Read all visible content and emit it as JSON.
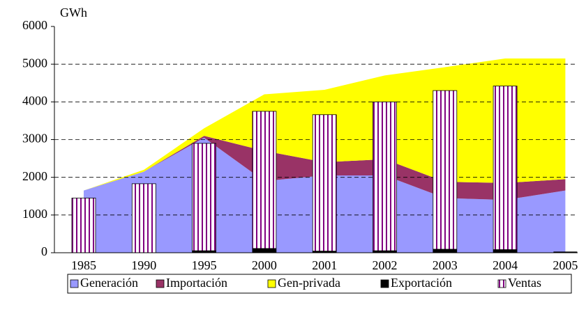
{
  "chart_data": {
    "type": "combo",
    "y_label": "GWh",
    "categories": [
      "1985",
      "1990",
      "1995",
      "2000",
      "2001",
      "2002",
      "2003",
      "2004",
      "2005"
    ],
    "ylim": [
      0,
      6000
    ],
    "yticks": [
      0,
      1000,
      2000,
      3000,
      4000,
      5000,
      6000
    ],
    "grid": true,
    "legend": "bottom",
    "series": [
      {
        "name": "Generación",
        "type": "area",
        "color": "#9999ff",
        "values": [
          1650,
          2150,
          3050,
          1900,
          2050,
          2050,
          1450,
          1400,
          1650
        ]
      },
      {
        "name": "Importación",
        "type": "area",
        "color": "#993366",
        "values": [
          0,
          0,
          50,
          800,
          350,
          430,
          430,
          450,
          300
        ]
      },
      {
        "name": "Gen-privada",
        "type": "area",
        "color": "#ffff00",
        "values": [
          0,
          50,
          200,
          1500,
          1920,
          2220,
          3040,
          3300,
          3200
        ]
      },
      {
        "name": "Exportación",
        "type": "bar",
        "color": "#000000",
        "values": [
          0,
          0,
          60,
          120,
          50,
          60,
          100,
          90,
          30
        ]
      },
      {
        "name": "Ventas",
        "type": "bar",
        "color": "#800080",
        "pattern": "vertical-stripes",
        "values": [
          1450,
          1830,
          2900,
          3750,
          3660,
          4000,
          4300,
          4420,
          null
        ]
      }
    ]
  }
}
